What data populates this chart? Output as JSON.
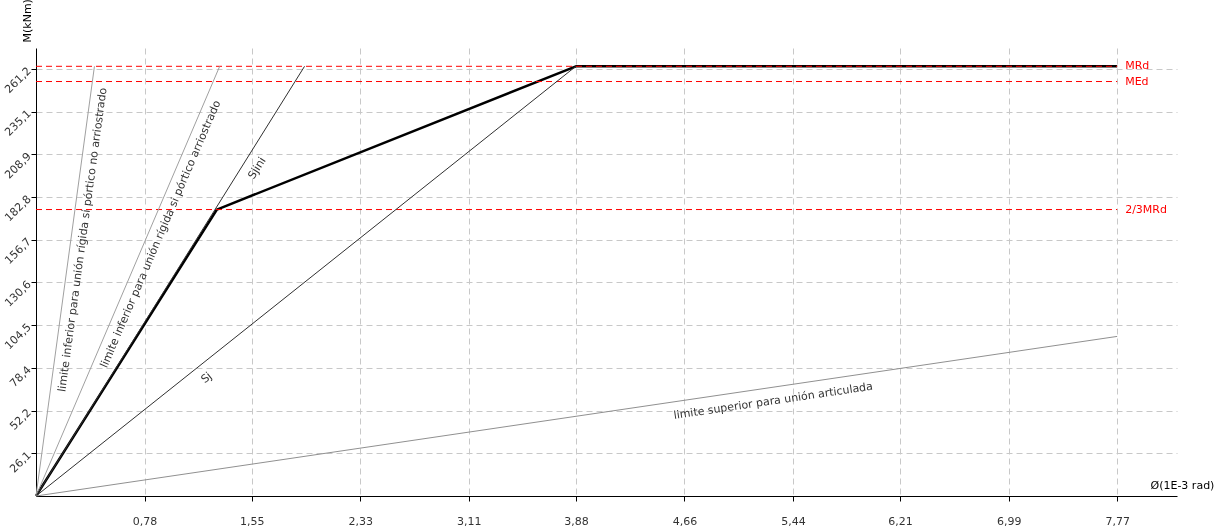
{
  "chart_data": {
    "type": "line",
    "xlabel": "Ø(1E-3 rad)",
    "ylabel": "M(kNm)",
    "xlim": [
      0,
      8.2
    ],
    "ylim": [
      0,
      274
    ],
    "xticks": [
      {
        "value": 0.78,
        "label": "0,78"
      },
      {
        "value": 1.55,
        "label": "1,55"
      },
      {
        "value": 2.33,
        "label": "2,33"
      },
      {
        "value": 3.11,
        "label": "3,11"
      },
      {
        "value": 3.88,
        "label": "3,88"
      },
      {
        "value": 4.66,
        "label": "4,66"
      },
      {
        "value": 5.44,
        "label": "5,44"
      },
      {
        "value": 6.21,
        "label": "6,21"
      },
      {
        "value": 6.99,
        "label": "6,99"
      },
      {
        "value": 7.77,
        "label": "7,77"
      }
    ],
    "yticks": [
      {
        "value": 26.1,
        "label": "26,1"
      },
      {
        "value": 52.2,
        "label": "52,2"
      },
      {
        "value": 78.4,
        "label": "78,4"
      },
      {
        "value": 104.5,
        "label": "104,5"
      },
      {
        "value": 130.6,
        "label": "130,6"
      },
      {
        "value": 156.7,
        "label": "156,7"
      },
      {
        "value": 182.8,
        "label": "182,8"
      },
      {
        "value": 208.9,
        "label": "208,9"
      },
      {
        "value": 235.1,
        "label": "235,1"
      },
      {
        "value": 261.2,
        "label": "261,2"
      }
    ],
    "grid": true,
    "marker": "none",
    "line_style": "solid",
    "series": [
      {
        "color": "#000000",
        "x": [
          0,
          1.3,
          3.88,
          7.77
        ],
        "values": [
          0,
          175.2,
          262.8,
          262.8
        ]
      },
      {
        "name": "limite inferior para unión rígida si pórtico no arriostrado",
        "color": "#a0a0a0",
        "x": [
          0,
          0.42
        ],
        "values": [
          0,
          262.8
        ]
      },
      {
        "name": "limite inferior para unión rígida si pórtico arriostrado",
        "color": "#a0a0a0",
        "x": [
          0,
          1.32
        ],
        "values": [
          0,
          262.8
        ]
      },
      {
        "name": "Sjini",
        "color": "#303030",
        "x": [
          0,
          1.93
        ],
        "values": [
          0,
          262.8
        ]
      },
      {
        "name": "Sj",
        "color": "#303030",
        "x": [
          0,
          3.88
        ],
        "values": [
          0,
          262.8
        ]
      },
      {
        "name": "limite superior para unión articulada",
        "color": "#909090",
        "x": [
          0,
          7.77
        ],
        "values": [
          0,
          97.6
        ]
      }
    ],
    "ref_lines": [
      {
        "axis": "y",
        "value": 262.8,
        "label": "MRd",
        "color": "#ff0000",
        "line_style": "dashed"
      },
      {
        "axis": "y",
        "value": 253.5,
        "label": "MEd",
        "color": "#ff0000",
        "line_style": "dashed"
      },
      {
        "axis": "y",
        "value": 175.2,
        "label": "2/3MRd",
        "color": "#ff0000",
        "line_style": "dashed"
      }
    ]
  }
}
